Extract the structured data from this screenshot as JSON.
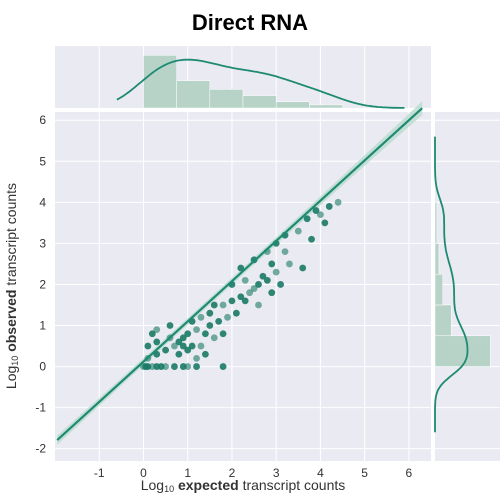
{
  "chart_data": {
    "type": "scatter",
    "title": "Direct RNA",
    "xlabel": {
      "prefix": "Log",
      "subscript": "10",
      "bold": "expected",
      "suffix": "transcript counts"
    },
    "ylabel": {
      "prefix": "Log",
      "subscript": "10",
      "bold": "observed",
      "suffix": "transcript counts"
    },
    "xlim": [
      -2,
      6.5
    ],
    "ylim": [
      -2.3,
      6.2
    ],
    "xticks": [
      -1,
      0,
      1,
      2,
      3,
      4,
      5,
      6
    ],
    "yticks": [
      -2,
      -1,
      0,
      1,
      2,
      3,
      4,
      5,
      6
    ],
    "grid": true,
    "colors": {
      "points": "#1a7a66",
      "line": "#1e8a72",
      "band": "#b9dccd",
      "panel": "#eaeaf2",
      "marginal": "#b7d3c7"
    },
    "regression": {
      "slope": 0.98,
      "intercept": 0.12
    },
    "points": [
      [
        0,
        0
      ],
      [
        0.05,
        0
      ],
      [
        0.1,
        0
      ],
      [
        0.2,
        0
      ],
      [
        0.3,
        0
      ],
      [
        0.4,
        0
      ],
      [
        0.5,
        0
      ],
      [
        0.7,
        0
      ],
      [
        0.9,
        0
      ],
      [
        1.0,
        0
      ],
      [
        1.2,
        0
      ],
      [
        1.8,
        0
      ],
      [
        0.1,
        0.2
      ],
      [
        0.3,
        0.3
      ],
      [
        0.5,
        0.4
      ],
      [
        0.7,
        0.5
      ],
      [
        0.9,
        0.5
      ],
      [
        1.1,
        0.5
      ],
      [
        1.3,
        0.5
      ],
      [
        0.1,
        0.5
      ],
      [
        0.3,
        0.6
      ],
      [
        0.6,
        0.7
      ],
      [
        0.8,
        0.6
      ],
      [
        1.0,
        0.8
      ],
      [
        1.2,
        0.9
      ],
      [
        1.4,
        0.8
      ],
      [
        0.2,
        0.8
      ],
      [
        0.3,
        0.9
      ],
      [
        0.6,
        1.0
      ],
      [
        1.1,
        1.1
      ],
      [
        1.3,
        1.2
      ],
      [
        1.5,
        1.0
      ],
      [
        1.7,
        1.1
      ],
      [
        1.9,
        1.2
      ],
      [
        0.8,
        0.3
      ],
      [
        1.0,
        0.4
      ],
      [
        1.2,
        0.2
      ],
      [
        1.4,
        0.3
      ],
      [
        0.9,
        0.7
      ],
      [
        1.6,
        0.7
      ],
      [
        1.8,
        0.8
      ],
      [
        1.5,
        1.3
      ],
      [
        1.8,
        1.5
      ],
      [
        2.0,
        1.6
      ],
      [
        2.2,
        1.7
      ],
      [
        2.4,
        1.8
      ],
      [
        2.6,
        2.0
      ],
      [
        2.8,
        2.1
      ],
      [
        3.0,
        2.3
      ],
      [
        2.1,
        1.3
      ],
      [
        2.3,
        1.6
      ],
      [
        2.5,
        1.9
      ],
      [
        2.7,
        2.2
      ],
      [
        2.9,
        2.5
      ],
      [
        3.2,
        2.8
      ],
      [
        2.2,
        2.4
      ],
      [
        2.5,
        2.6
      ],
      [
        2.8,
        2.8
      ],
      [
        3.0,
        3.0
      ],
      [
        3.2,
        3.2
      ],
      [
        3.5,
        3.3
      ],
      [
        3.7,
        3.6
      ],
      [
        3.9,
        3.8
      ],
      [
        2.6,
        1.5
      ],
      [
        2.9,
        1.8
      ],
      [
        3.1,
        2.0
      ],
      [
        3.3,
        2.5
      ],
      [
        3.6,
        2.4
      ],
      [
        3.8,
        3.1
      ],
      [
        4.0,
        3.7
      ],
      [
        4.1,
        3.5
      ],
      [
        4.2,
        3.9
      ],
      [
        4.4,
        4.0
      ],
      [
        1.6,
        1.5
      ],
      [
        2.0,
        2.0
      ],
      [
        2.3,
        2.1
      ]
    ],
    "top_hist": [
      {
        "x0": 0,
        "x1": 0.75,
        "h": 0.85
      },
      {
        "x0": 0.75,
        "x1": 1.5,
        "h": 0.44
      },
      {
        "x0": 1.5,
        "x1": 2.25,
        "h": 0.3
      },
      {
        "x0": 2.25,
        "x1": 3.0,
        "h": 0.2
      },
      {
        "x0": 3.0,
        "x1": 3.75,
        "h": 0.1
      },
      {
        "x0": 3.75,
        "x1": 4.5,
        "h": 0.05
      }
    ],
    "right_hist": [
      {
        "y0": 0,
        "y1": 0.75,
        "w": 0.85
      },
      {
        "y0": 0.75,
        "y1": 1.5,
        "w": 0.25
      },
      {
        "y0": 1.5,
        "y1": 2.25,
        "w": 0.12
      },
      {
        "y0": 2.25,
        "y1": 3.0,
        "w": 0.06
      },
      {
        "y0": 3.0,
        "y1": 4.0,
        "w": 0.03
      }
    ]
  }
}
